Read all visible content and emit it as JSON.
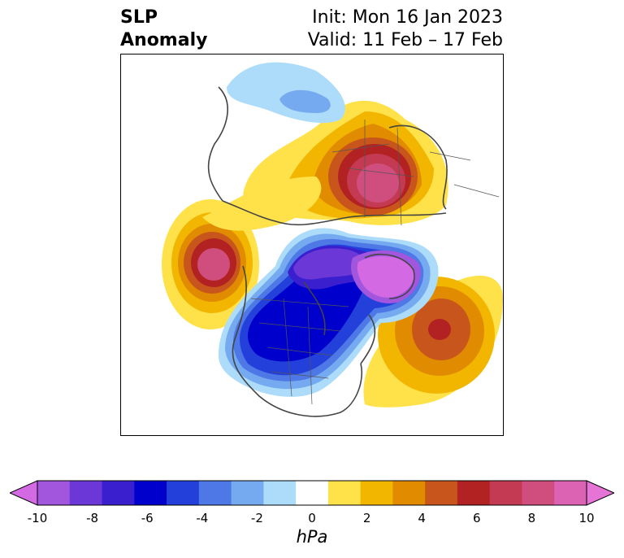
{
  "title": {
    "left_line1": "SLP",
    "left_line2": "Anomaly",
    "right_line1": "Init: Mon 16 Jan 2023",
    "right_line2": "Valid: 11 Feb – 17 Feb"
  },
  "colorbar": {
    "unit": "hPa",
    "ticks": [
      "-10",
      "-8",
      "-6",
      "-4",
      "-2",
      "0",
      "2",
      "4",
      "6",
      "8",
      "10"
    ],
    "colors": [
      "#d36ae4",
      "#a255dd",
      "#6b37d6",
      "#3a1fcf",
      "#0000cd",
      "#2440db",
      "#4e78e6",
      "#76aaf0",
      "#acdcfa",
      "#ffffff",
      "#ffe14a",
      "#f2b600",
      "#e08b00",
      "#c8561c",
      "#b22222",
      "#c43a52",
      "#d04e7e",
      "#dc62b4",
      "#e574d6"
    ]
  },
  "anomalies": [
    {
      "label": "negative-low-north-america",
      "color": "#0000cd"
    },
    {
      "label": "negative-low-arctic-greenland",
      "color": "#d36ae4"
    },
    {
      "label": "positive-high-eurasia",
      "color": "#e574d6"
    },
    {
      "label": "positive-high-north-pacific",
      "color": "#d04e7e"
    },
    {
      "label": "positive-high-north-atlantic",
      "color": "#b22222"
    }
  ]
}
